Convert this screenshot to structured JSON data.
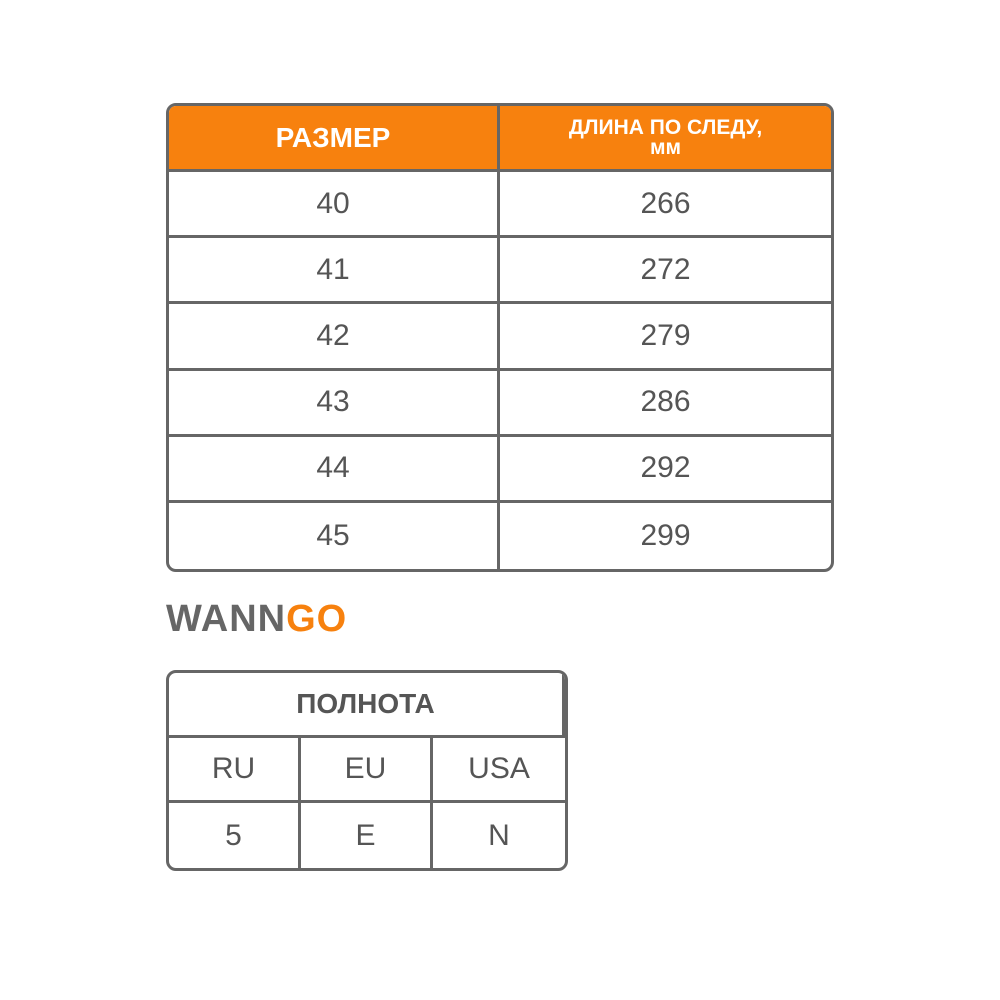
{
  "size_table": {
    "header": [
      "РАЗМЕР",
      "ДЛИНА ПО СЛЕДУ, мм"
    ],
    "rows": [
      [
        "40",
        "266"
      ],
      [
        "41",
        "272"
      ],
      [
        "42",
        "279"
      ],
      [
        "43",
        "286"
      ],
      [
        "44",
        "292"
      ],
      [
        "45",
        "299"
      ]
    ]
  },
  "logo": {
    "dark": "WANN",
    "accent": "GO"
  },
  "width_table": {
    "title": "ПОЛНОТА",
    "header": [
      "RU",
      "EU",
      "USA"
    ],
    "rows": [
      [
        "5",
        "E",
        "N"
      ]
    ]
  }
}
